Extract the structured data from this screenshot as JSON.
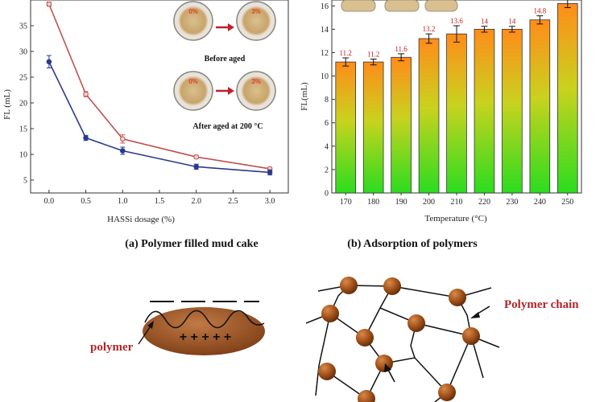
{
  "chart_data": [
    {
      "type": "line",
      "xlabel": "HASSi dosage (%)",
      "ylabel": "FL (mL)",
      "caption": "(a) Polymer filled mud cake",
      "xlim": [
        -0.25,
        3.25
      ],
      "ylim": [
        2.5,
        40
      ],
      "x_ticks": [
        "0.0",
        "0.5",
        "1.0",
        "1.5",
        "2.0",
        "2.5",
        "3.0"
      ],
      "y_ticks": [
        "5",
        "10",
        "15",
        "20",
        "25",
        "30",
        "35"
      ],
      "series": [
        {
          "color": "#c0504d",
          "x": [
            0,
            0.5,
            1.0,
            2.0,
            3.0
          ],
          "y": [
            39.2,
            21.7,
            13.0,
            9.5,
            7.2
          ],
          "err": [
            0.4,
            0.5,
            0.8,
            0.3,
            0.3
          ]
        },
        {
          "color": "#2b3a8c",
          "x": [
            0,
            0.5,
            1.0,
            2.0,
            3.0
          ],
          "y": [
            28.0,
            13.2,
            10.7,
            7.6,
            6.5
          ],
          "err": [
            1.2,
            0.5,
            0.7,
            0.5,
            0.5
          ]
        }
      ],
      "inset": {
        "before_label": "Before aged",
        "after_label": "After aged at 200 °C",
        "dish_left": "0%",
        "dish_right": "3%"
      }
    },
    {
      "type": "bar",
      "xlabel": "Temperature (°C)",
      "ylabel": "FL(mL)",
      "caption": "(b) Adsorption  of polymers",
      "ylim": [
        0,
        16.5
      ],
      "y_ticks": [
        "0",
        "2",
        "4",
        "6",
        "8",
        "10",
        "12",
        "14",
        "16"
      ],
      "categories": [
        "170",
        "180",
        "190",
        "200",
        "210",
        "220",
        "230",
        "240",
        "250"
      ],
      "values": [
        11.2,
        11.2,
        11.6,
        13.2,
        13.6,
        14.0,
        14.0,
        14.8,
        16.2
      ],
      "data_labels": [
        "11.2",
        "11.2",
        "11.6",
        "13.2",
        "13.6",
        "14",
        "14",
        "14.8",
        ""
      ],
      "errors": [
        0.35,
        0.25,
        0.3,
        0.4,
        0.7,
        0.25,
        0.25,
        0.35,
        0.35
      ],
      "colors": {
        "top": "#ff8c1a",
        "bottom": "#2bdc1f",
        "label": "#c0201f"
      }
    }
  ],
  "diagram": {
    "polymer_label": "polymer",
    "plus_signs": "+ + + + +",
    "network_label": "Polymer chain"
  }
}
